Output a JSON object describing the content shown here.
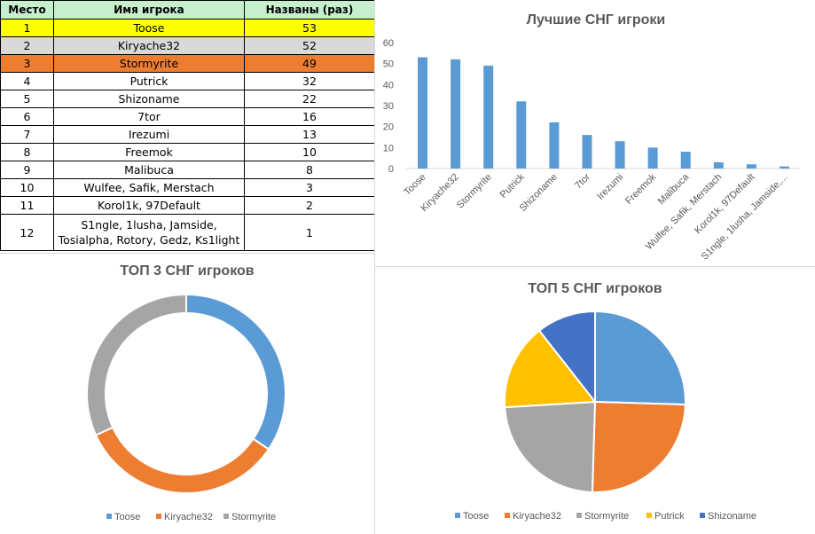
{
  "table": {
    "headers": [
      "Место",
      "Имя игрока",
      "Названы (раз)"
    ],
    "rows": [
      {
        "place": "1",
        "name": "Toose",
        "count": "53",
        "highlight": "#ffff00"
      },
      {
        "place": "2",
        "name": "Kiryache32",
        "count": "52",
        "highlight": "#d9d9d9"
      },
      {
        "place": "3",
        "name": "Stormyrite",
        "count": "49",
        "highlight": "#ed7d31"
      },
      {
        "place": "4",
        "name": "Putrick",
        "count": "32",
        "highlight": ""
      },
      {
        "place": "5",
        "name": "Shizoname",
        "count": "22",
        "highlight": ""
      },
      {
        "place": "6",
        "name": "7tor",
        "count": "16",
        "highlight": ""
      },
      {
        "place": "7",
        "name": "Irezumi",
        "count": "13",
        "highlight": ""
      },
      {
        "place": "8",
        "name": "Freemok",
        "count": "10",
        "highlight": ""
      },
      {
        "place": "9",
        "name": "Malibuca",
        "count": "8",
        "highlight": ""
      },
      {
        "place": "10",
        "name": "Wulfee, Safik, Merstach",
        "count": "3",
        "highlight": ""
      },
      {
        "place": "11",
        "name": "Korol1k, 97Default",
        "count": "2",
        "highlight": ""
      },
      {
        "place": "12",
        "name": "S1ngle, 1lusha, Jamside, Tosialpha, Rotory, Gedz, Ks1light",
        "count": "1",
        "highlight": ""
      }
    ]
  },
  "chart_data": [
    {
      "type": "bar",
      "title": "Лучшие СНГ игроки",
      "categories": [
        "Toose",
        "Kiryache32",
        "Stormyrite",
        "Putrick",
        "Shizoname",
        "7tor",
        "Irezumi",
        "Freemok",
        "Malibuca",
        "Wulfee, Safik, Merstach",
        "Korol1k, 97Default",
        "S1ngle, 1lusha, Jamside,..."
      ],
      "values": [
        53,
        52,
        49,
        32,
        22,
        16,
        13,
        10,
        8,
        3,
        2,
        1
      ],
      "ylim": [
        0,
        60
      ],
      "yticks": [
        0,
        10,
        20,
        30,
        40,
        50,
        60
      ],
      "grid": false,
      "color": "#5b9bd5"
    },
    {
      "type": "pie",
      "variant": "doughnut",
      "title": "ТОП 3 СНГ игроков",
      "labels": [
        "Toose",
        "Kiryache32",
        "Stormyrite"
      ],
      "values": [
        53,
        52,
        49
      ],
      "colors": [
        "#5b9bd5",
        "#ed7d31",
        "#a5a5a5"
      ],
      "legend": "bottom"
    },
    {
      "type": "pie",
      "title": "ТОП 5 СНГ игроков",
      "labels": [
        "Toose",
        "Kiryache32",
        "Stormyrite",
        "Putrick",
        "Shizoname"
      ],
      "values": [
        53,
        52,
        49,
        32,
        22
      ],
      "colors": [
        "#5b9bd5",
        "#ed7d31",
        "#a5a5a5",
        "#ffc000",
        "#4472c4"
      ],
      "legend": "bottom"
    }
  ]
}
